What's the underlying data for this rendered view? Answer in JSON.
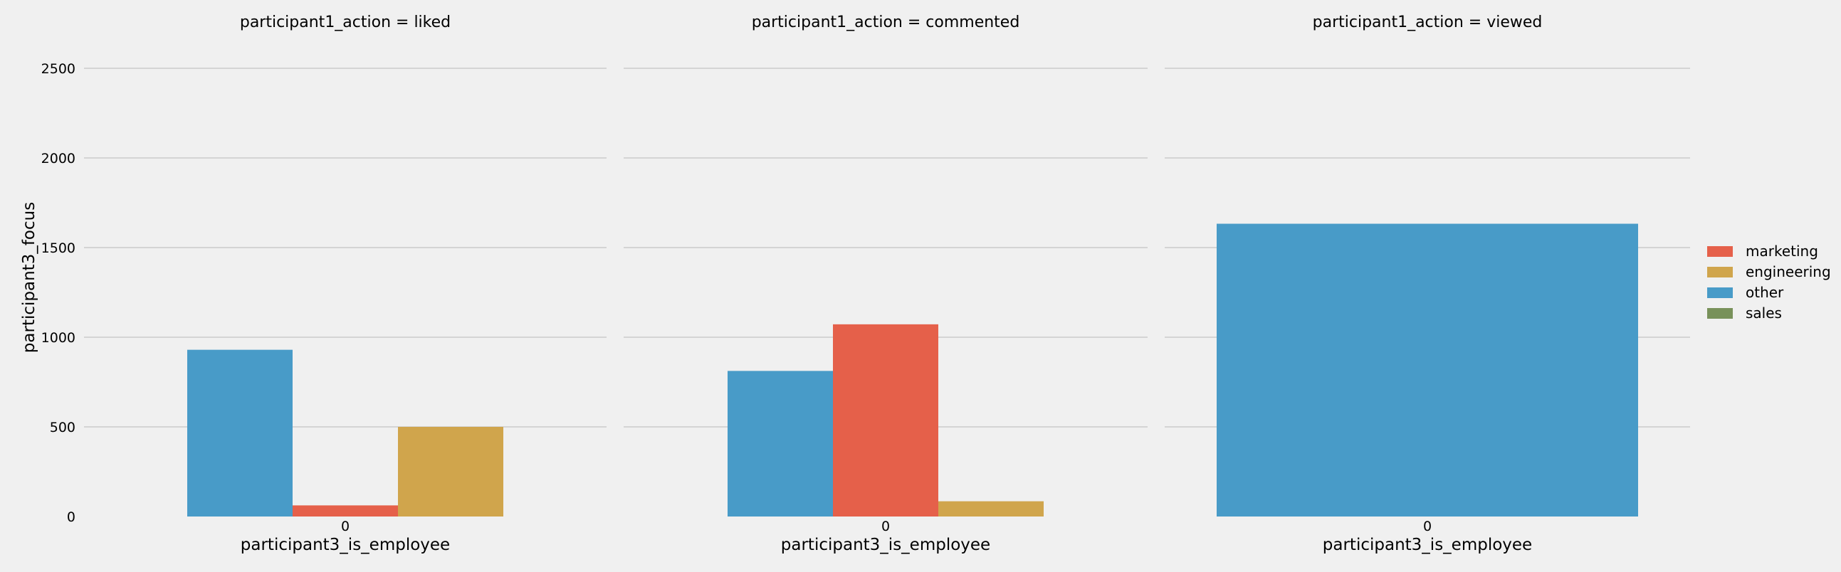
{
  "chart_data": {
    "type": "bar",
    "ylabel": "participant3_focus",
    "ylim": [
      0,
      2500
    ],
    "yticks": [
      "0",
      "500",
      "1000",
      "1500",
      "2000",
      "2500"
    ],
    "grid": true,
    "legend": {
      "placement": "right",
      "entries": [
        {
          "label": "marketing",
          "color": "#e5604a"
        },
        {
          "label": "engineering",
          "color": "#d0a54c"
        },
        {
          "label": "other",
          "color": "#489bc8"
        },
        {
          "label": "sales",
          "color": "#78915a"
        }
      ]
    },
    "panels": [
      {
        "title": "participant1_action = liked",
        "xlabel": "participant3_is_employee",
        "categories": [
          "0"
        ],
        "series": [
          {
            "name": "other",
            "values": [
              930
            ],
            "color": "#489bc8"
          },
          {
            "name": "marketing",
            "values": [
              62
            ],
            "color": "#e5604a"
          },
          {
            "name": "engineering",
            "values": [
              500
            ],
            "color": "#d0a54c"
          }
        ]
      },
      {
        "title": "participant1_action = commented",
        "xlabel": "participant3_is_employee",
        "categories": [
          "0"
        ],
        "series": [
          {
            "name": "other",
            "values": [
              812
            ],
            "color": "#489bc8"
          },
          {
            "name": "marketing",
            "values": [
              1072
            ],
            "color": "#e5604a"
          },
          {
            "name": "engineering",
            "values": [
              85
            ],
            "color": "#d0a54c"
          }
        ]
      },
      {
        "title": "participant1_action = viewed",
        "xlabel": "participant3_is_employee",
        "categories": [
          "0"
        ],
        "series": [
          {
            "name": "other",
            "values": [
              1633
            ],
            "color": "#489bc8"
          }
        ]
      }
    ]
  }
}
